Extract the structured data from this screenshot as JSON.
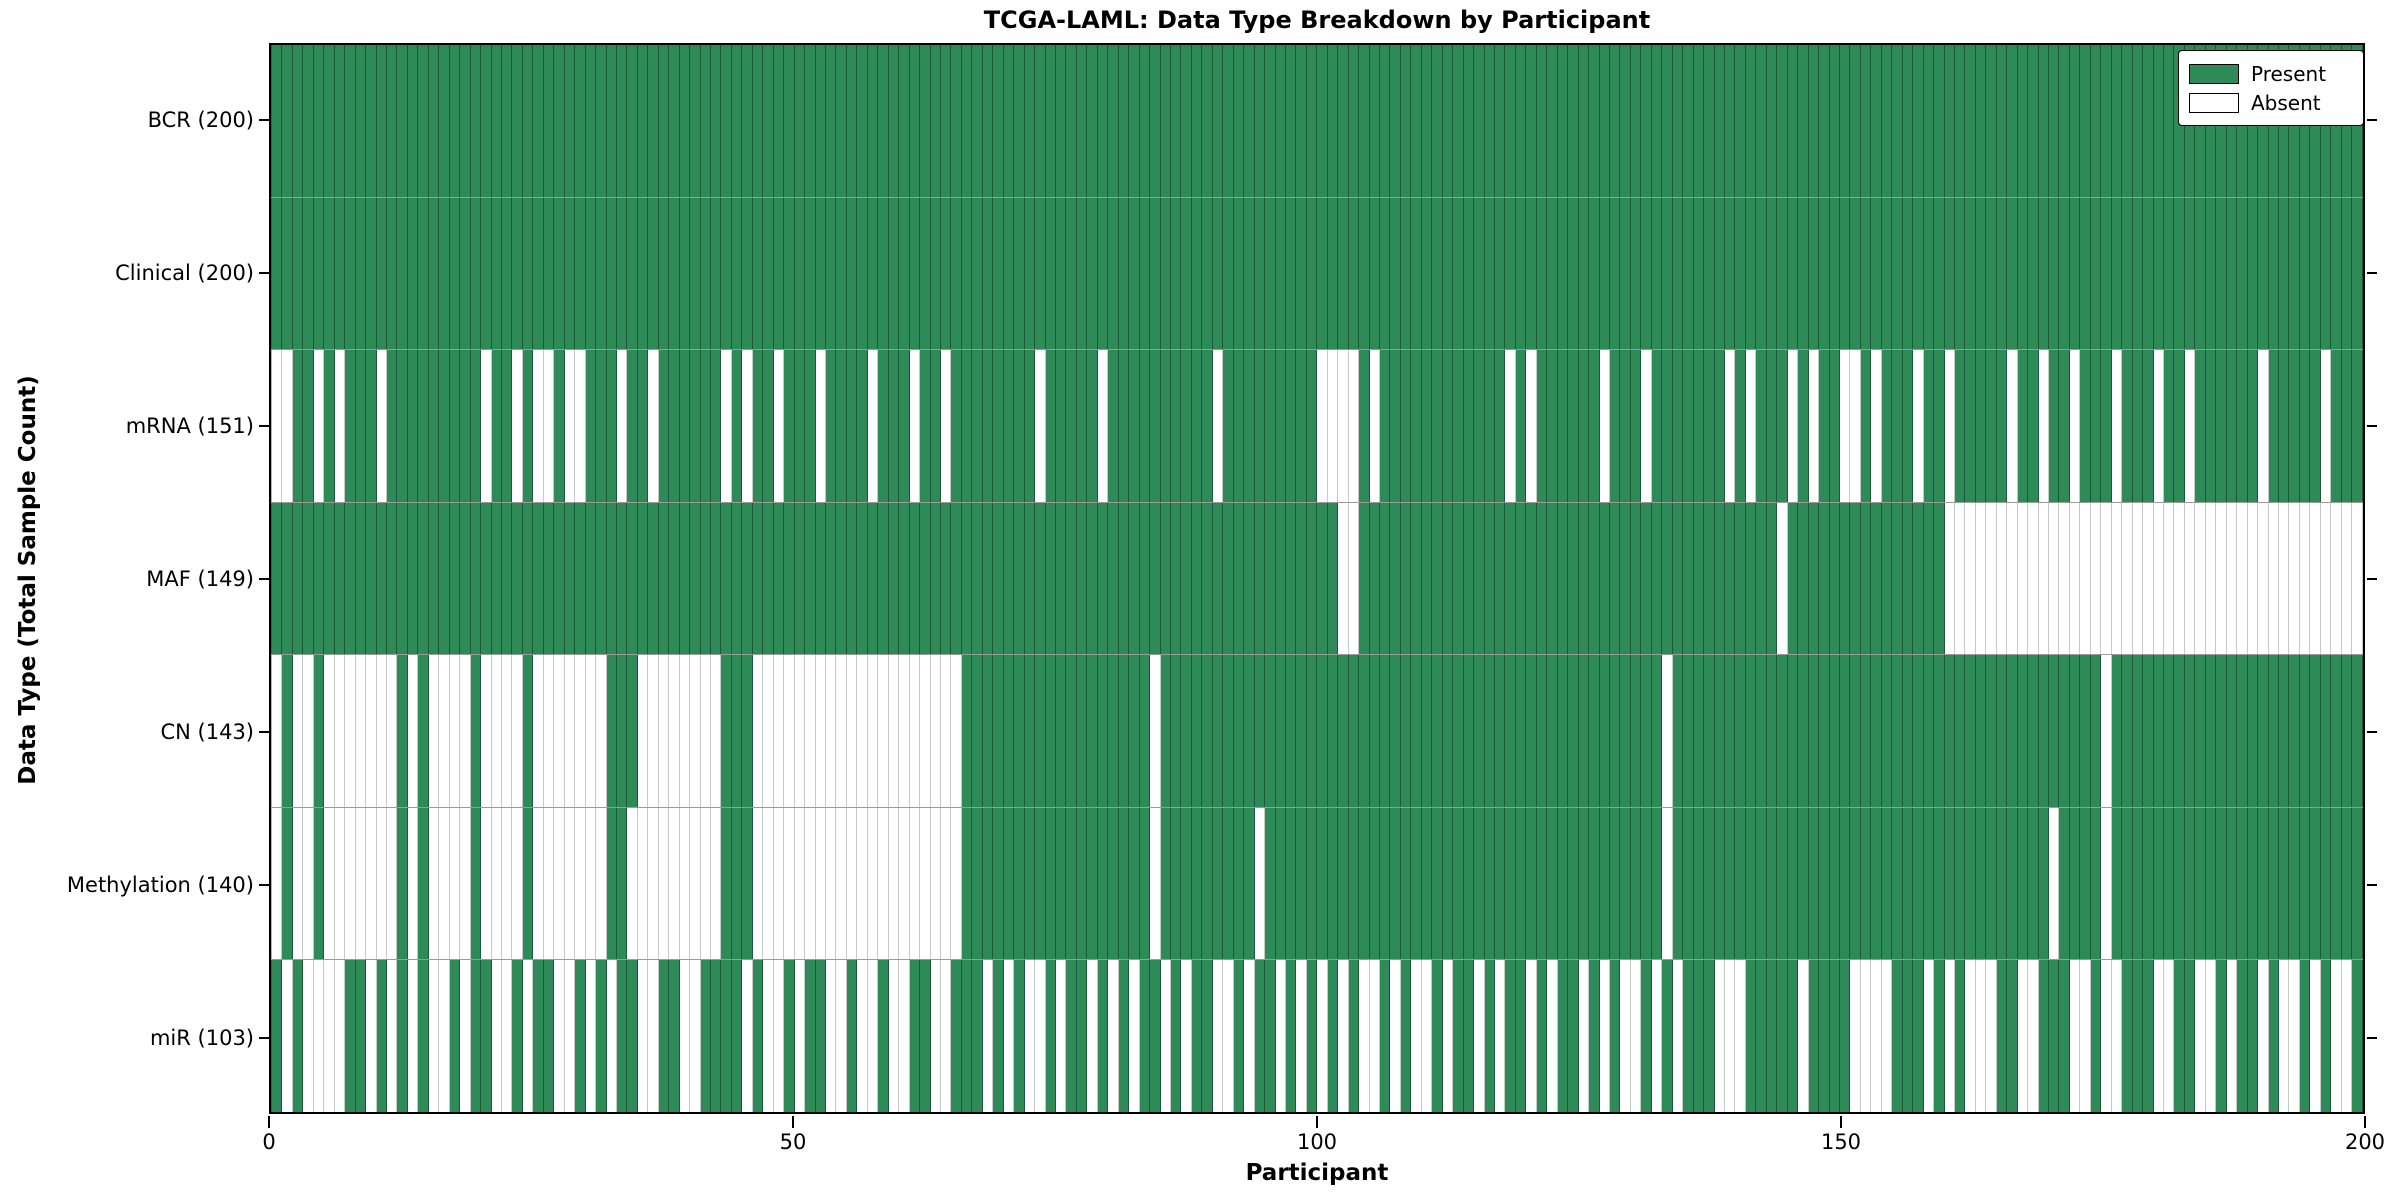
{
  "title": "TCGA-LAML: Data Type Breakdown by Participant",
  "x_axis": {
    "label": "Participant",
    "ticks": [
      "0",
      "50",
      "100",
      "150",
      "200"
    ]
  },
  "y_axis": {
    "label": "Data Type (Total Sample Count)"
  },
  "legend": {
    "present_label": "Present",
    "absent_label": "Absent"
  },
  "colors": {
    "present": "#2e8b57",
    "absent": "#ffffff",
    "row_separator": "#9a9a9a",
    "axis": "#000000"
  },
  "chart_data": {
    "type": "heatmap",
    "title": "TCGA-LAML: Data Type Breakdown by Participant",
    "xlabel": "Participant",
    "ylabel": "Data Type (Total Sample Count)",
    "x_range": [
      0,
      200
    ],
    "x_ticks": [
      0,
      50,
      100,
      150,
      200
    ],
    "n_participants": 200,
    "legend_entries": [
      "Present",
      "Absent"
    ],
    "encoding": "pattern: one char per participant 0..199; 1=Present(green), 0=Absent(white)",
    "rows": [
      {
        "label": "BCR (200)",
        "data_type": "BCR",
        "present_count": 200,
        "pattern": "11111111111111111111111111111111111111111111111111111111111111111111111111111111111111111111111111111111111111111111111111111111111111111111111111111111111111111111111111111111111111111111111111111111"
      },
      {
        "label": "Clinical (200)",
        "data_type": "Clinical",
        "present_count": 200,
        "pattern": "11111111111111111111111111111111111111111111111111111111111111111111111111111111111111111111111111111111111111111111111111111111111111111111111111111111111111111111111111111111111111111111111111111111"
      },
      {
        "label": "mRNA (151)",
        "data_type": "mRNA",
        "present_count": 151,
        "pattern": "00110101110111111111011010010011101101111110101101110111101110110111111110111110111111111101111111110000101111111111110101111110111011111110101110101100101110110111110110110111011101101111110111110111"
      },
      {
        "label": "MAF (149)",
        "data_type": "MAF",
        "present_count": 149,
        "pattern": "11111111111111111111111111111111111111111111111111111111111111111111111111111111111111111111111111111100111111111111111111111111111111111111111101111111111111110000000000000000000000000000000000000000"
      },
      {
        "label": "CN (143)",
        "data_type": "CN",
        "present_count": 143,
        "pattern": "01001000000010100001000010000000111000000001110000000000000000000011111111111111111101111111111111111111111111111111111111111111111110111111111111111111111111111111111111111110111111111111111111111111"
      },
      {
        "label": "Methylation (140)",
        "data_type": "Methylation",
        "present_count": 140,
        "pattern": "01001000000010100001000010000000110000000001110000000000000000000011111111111111111101111111110111111111111111111111111111111111111110111111111111111111111111111111111111011110111111111111111111111111"
      },
      {
        "label": "miR (103)",
        "data_type": "miR",
        "present_count": 103,
        "pattern": "10100001101010100101100101100101011001100111101001011001001001100111010100101101010110101100101101010101001010010110101101011010100101011100011111011110000111010100011001110010011100110010110100101001"
      }
    ]
  }
}
